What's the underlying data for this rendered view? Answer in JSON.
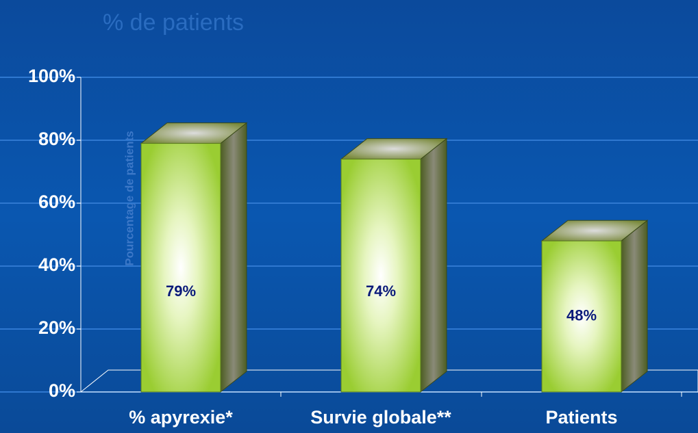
{
  "chart_data": {
    "type": "bar3d",
    "title": "% de patients",
    "ylabel": "Pourcentage de patients",
    "categories": [
      "% apyrexie*",
      "Survie globale**",
      "Patients"
    ],
    "values": [
      79,
      74,
      48
    ],
    "value_labels": [
      "79%",
      "74%",
      "48%"
    ],
    "color": "#9acd32",
    "ylim": [
      0,
      100
    ],
    "yticks": [
      {
        "value": 0,
        "label": "0%"
      },
      {
        "value": 20,
        "label": "20%"
      },
      {
        "value": 40,
        "label": "40%"
      },
      {
        "value": 60,
        "label": "60%"
      },
      {
        "value": 80,
        "label": "80%"
      },
      {
        "value": 100,
        "label": "100%"
      }
    ],
    "grid": true
  }
}
